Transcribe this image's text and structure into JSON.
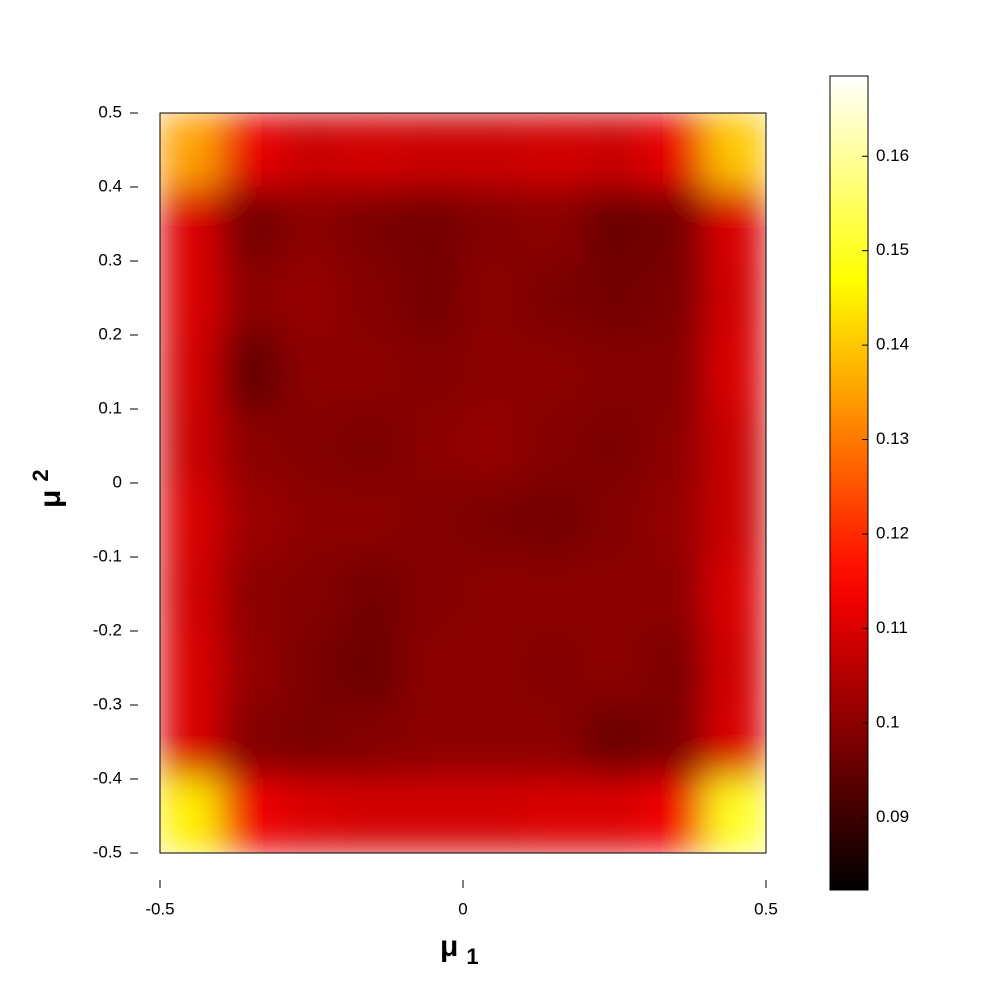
{
  "chart_data": {
    "type": "heatmap",
    "xlabel": [
      "μ",
      "1"
    ],
    "ylabel": [
      "μ",
      "2"
    ],
    "xlim": [
      -0.5,
      0.5
    ],
    "xticks": [
      -0.5,
      0,
      0.5
    ],
    "ylim": [
      -0.5,
      0.5
    ],
    "yticks": [
      -0.5,
      -0.4,
      -0.3,
      -0.2,
      -0.1,
      0,
      0.1,
      0.2,
      0.3,
      0.4,
      0.5
    ],
    "colormap": "hot",
    "clim": [
      0.0823,
      0.1685
    ],
    "cticks": [
      0.09,
      0.1,
      0.11,
      0.12,
      0.13,
      0.14,
      0.15,
      0.16
    ],
    "z": [
      [
        0.135,
        0.112,
        0.108,
        0.109,
        0.108,
        0.108,
        0.109,
        0.108,
        0.112,
        0.14
      ],
      [
        0.11,
        0.097,
        0.1,
        0.098,
        0.097,
        0.099,
        0.1,
        0.096,
        0.097,
        0.11
      ],
      [
        0.11,
        0.1,
        0.101,
        0.099,
        0.097,
        0.1,
        0.098,
        0.097,
        0.098,
        0.109
      ],
      [
        0.109,
        0.095,
        0.1,
        0.1,
        0.099,
        0.1,
        0.1,
        0.099,
        0.099,
        0.11
      ],
      [
        0.108,
        0.1,
        0.099,
        0.098,
        0.1,
        0.101,
        0.099,
        0.098,
        0.1,
        0.108
      ],
      [
        0.11,
        0.102,
        0.1,
        0.1,
        0.099,
        0.098,
        0.097,
        0.099,
        0.101,
        0.108
      ],
      [
        0.109,
        0.1,
        0.099,
        0.097,
        0.099,
        0.1,
        0.1,
        0.1,
        0.1,
        0.11
      ],
      [
        0.11,
        0.101,
        0.098,
        0.096,
        0.1,
        0.1,
        0.099,
        0.1,
        0.098,
        0.109
      ],
      [
        0.11,
        0.099,
        0.098,
        0.099,
        0.1,
        0.1,
        0.1,
        0.096,
        0.098,
        0.11
      ],
      [
        0.145,
        0.113,
        0.11,
        0.109,
        0.109,
        0.109,
        0.11,
        0.11,
        0.113,
        0.15
      ]
    ]
  }
}
